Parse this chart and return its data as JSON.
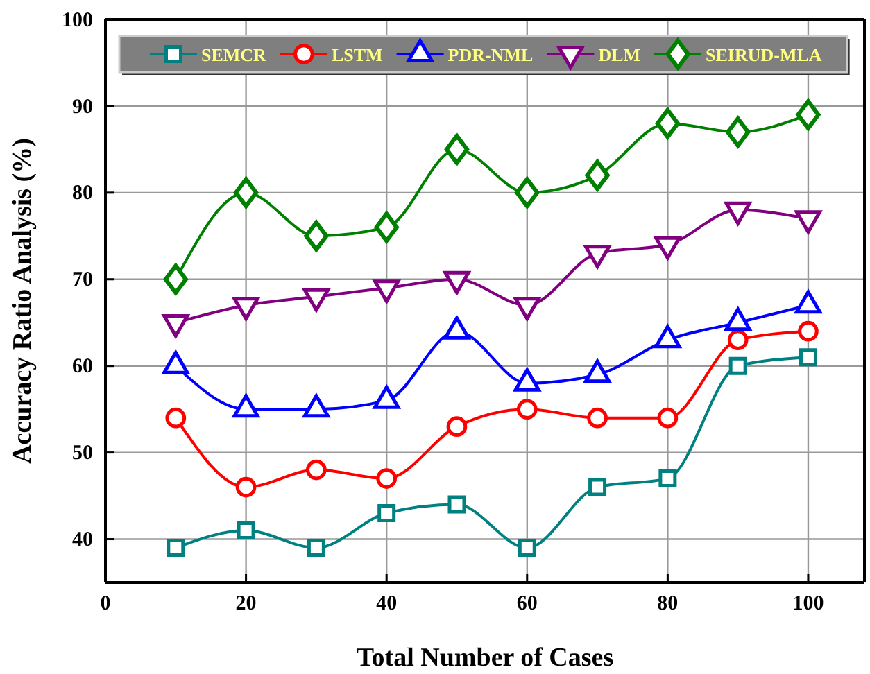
{
  "chart_data": {
    "type": "line",
    "xlabel": "Total Number of Cases",
    "ylabel": "Accuracy Ratio Analysis (%)",
    "x": [
      10,
      20,
      30,
      40,
      50,
      60,
      70,
      80,
      90,
      100
    ],
    "series": [
      {
        "name": "SEMCR",
        "color": "#008080",
        "marker": "square",
        "values": [
          39,
          41,
          39,
          43,
          44,
          39,
          46,
          47,
          60,
          61
        ]
      },
      {
        "name": "LSTM",
        "color": "#ff0000",
        "marker": "circle",
        "values": [
          54,
          46,
          48,
          47,
          53,
          55,
          54,
          54,
          63,
          64
        ]
      },
      {
        "name": "PDR-NML",
        "color": "#0000ff",
        "marker": "triangle",
        "values": [
          60,
          55,
          55,
          56,
          64,
          58,
          59,
          63,
          65,
          67
        ]
      },
      {
        "name": "DLM",
        "color": "#800080",
        "marker": "triangle-down",
        "values": [
          65,
          67,
          68,
          69,
          70,
          67,
          73,
          74,
          78,
          77
        ]
      },
      {
        "name": "SEIRUD-MLA",
        "color": "#008000",
        "marker": "diamond",
        "values": [
          70,
          80,
          75,
          76,
          85,
          80,
          82,
          88,
          87,
          89
        ]
      }
    ],
    "xlim": [
      0,
      108
    ],
    "xticks": [
      0,
      20,
      40,
      60,
      80,
      100
    ],
    "ylim": [
      35,
      100
    ],
    "yticks": [
      40,
      50,
      60,
      70,
      80,
      90,
      100
    ],
    "grid": true,
    "legend": "top"
  }
}
